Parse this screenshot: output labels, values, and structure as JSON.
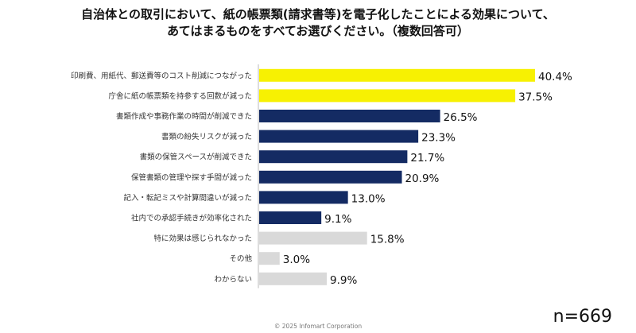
{
  "title_line1": "自治体との取引において、紙の帳票類(請求書等)を電子化したことによる効果について、",
  "title_line2": "あてはまるものをすべてお選びください。（複数回答可）",
  "sample_size": "n=669",
  "copyright": "© 2025 Infomart Corporation",
  "colors": {
    "yellow": "#f7f102",
    "navy": "#142b63",
    "gray": "#d9d9d9",
    "axis": "#bbbbbb"
  },
  "chart_data": {
    "type": "bar",
    "orientation": "horizontal",
    "categories": [
      "印刷費、用紙代、郵送費等のコスト削減につながった",
      "庁舎に紙の帳票類を持参する回数が減った",
      "書類作成や事務作業の時間が削減できた",
      "書類の紛失リスクが減った",
      "書類の保管スペースが削減できた",
      "保管書類の管理や探す手間が減った",
      "記入・転記ミスや計算間違いが減った",
      "社内での承認手続きが効率化された",
      "特に効果は感じられなかった",
      "その他",
      "わからない"
    ],
    "values": [
      40.4,
      37.5,
      26.5,
      23.3,
      21.7,
      20.9,
      13.0,
      9.1,
      15.8,
      3.0,
      9.9
    ],
    "value_labels": [
      "40.4%",
      "37.5%",
      "26.5%",
      "23.3%",
      "21.7%",
      "20.9%",
      "13.0%",
      "9.1%",
      "15.8%",
      "3.0%",
      "9.9%"
    ],
    "bar_colors": [
      "yellow",
      "yellow",
      "navy",
      "navy",
      "navy",
      "navy",
      "navy",
      "navy",
      "gray",
      "gray",
      "gray"
    ],
    "xlim": [
      0,
      40.4
    ],
    "grid": false,
    "legend": "none"
  }
}
